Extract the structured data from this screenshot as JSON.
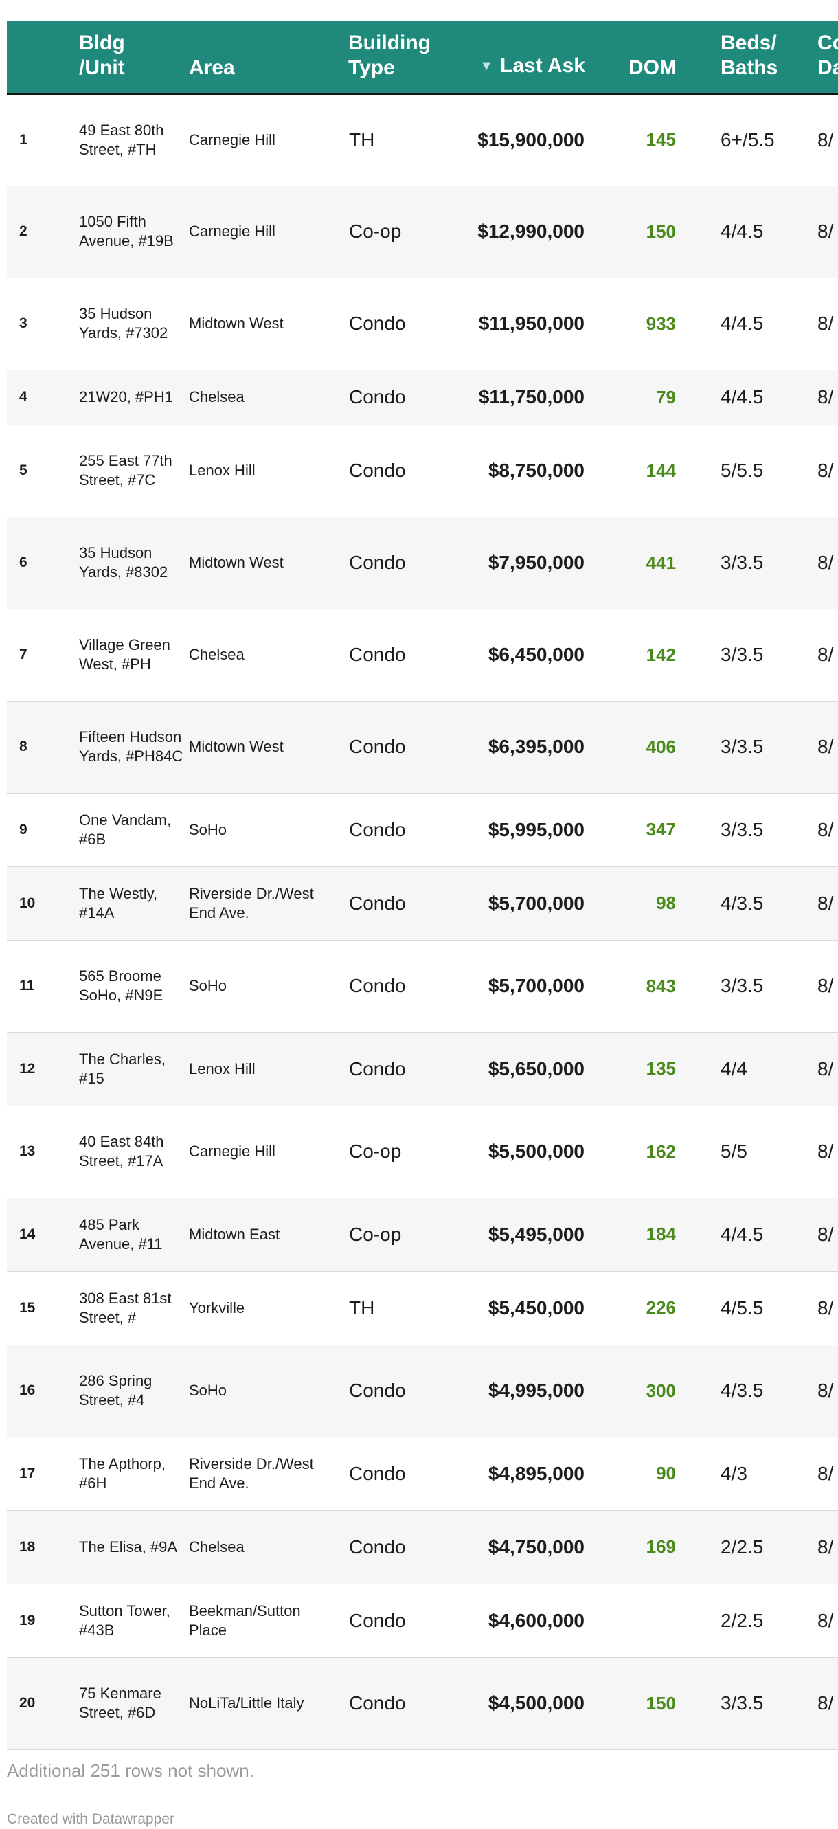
{
  "chart_data": {
    "type": "table",
    "columns": {
      "rank": "",
      "bldg": "Bldg\n/Unit",
      "area": "Area",
      "type": "Building\nType",
      "ask": "Last Ask",
      "dom": "DOM",
      "beds": "Beds/\nBaths",
      "date": "Co\nDa"
    },
    "sort_indicator": "▼",
    "rows": [
      {
        "rank": "1",
        "bldg": "49 East 80th Street, #TH",
        "area": "Carnegie Hill",
        "type": "TH",
        "ask": "$15,900,000",
        "dom": "145",
        "beds": "6+/5.5",
        "date": "8/"
      },
      {
        "rank": "2",
        "bldg": "1050 Fifth Avenue, #19B",
        "area": "Carnegie Hill",
        "type": "Co-op",
        "ask": "$12,990,000",
        "dom": "150",
        "beds": "4/4.5",
        "date": "8/"
      },
      {
        "rank": "3",
        "bldg": "35 Hudson Yards, #7302",
        "area": "Midtown West",
        "type": "Condo",
        "ask": "$11,950,000",
        "dom": "933",
        "beds": "4/4.5",
        "date": "8/"
      },
      {
        "rank": "4",
        "bldg": "21W20, #PH1",
        "area": "Chelsea",
        "type": "Condo",
        "ask": "$11,750,000",
        "dom": "79",
        "beds": "4/4.5",
        "date": "8/"
      },
      {
        "rank": "5",
        "bldg": "255 East 77th Street, #7C",
        "area": "Lenox Hill",
        "type": "Condo",
        "ask": "$8,750,000",
        "dom": "144",
        "beds": "5/5.5",
        "date": "8/"
      },
      {
        "rank": "6",
        "bldg": "35 Hudson Yards, #8302",
        "area": "Midtown West",
        "type": "Condo",
        "ask": "$7,950,000",
        "dom": "441",
        "beds": "3/3.5",
        "date": "8/"
      },
      {
        "rank": "7",
        "bldg": "Village Green West, #PH",
        "area": "Chelsea",
        "type": "Condo",
        "ask": "$6,450,000",
        "dom": "142",
        "beds": "3/3.5",
        "date": "8/"
      },
      {
        "rank": "8",
        "bldg": "Fifteen Hudson Yards, #PH84C",
        "area": "Midtown West",
        "type": "Condo",
        "ask": "$6,395,000",
        "dom": "406",
        "beds": "3/3.5",
        "date": "8/"
      },
      {
        "rank": "9",
        "bldg": "One Vandam, #6B",
        "area": "SoHo",
        "type": "Condo",
        "ask": "$5,995,000",
        "dom": "347",
        "beds": "3/3.5",
        "date": "8/"
      },
      {
        "rank": "10",
        "bldg": "The Westly, #14A",
        "area": "Riverside Dr./West End Ave.",
        "type": "Condo",
        "ask": "$5,700,000",
        "dom": "98",
        "beds": "4/3.5",
        "date": "8/"
      },
      {
        "rank": "11",
        "bldg": "565 Broome SoHo, #N9E",
        "area": "SoHo",
        "type": "Condo",
        "ask": "$5,700,000",
        "dom": "843",
        "beds": "3/3.5",
        "date": "8/"
      },
      {
        "rank": "12",
        "bldg": "The Charles, #15",
        "area": "Lenox Hill",
        "type": "Condo",
        "ask": "$5,650,000",
        "dom": "135",
        "beds": "4/4",
        "date": "8/"
      },
      {
        "rank": "13",
        "bldg": "40 East 84th Street, #17A",
        "area": "Carnegie Hill",
        "type": "Co-op",
        "ask": "$5,500,000",
        "dom": "162",
        "beds": "5/5",
        "date": "8/"
      },
      {
        "rank": "14",
        "bldg": "485 Park Avenue, #11",
        "area": "Midtown East",
        "type": "Co-op",
        "ask": "$5,495,000",
        "dom": "184",
        "beds": "4/4.5",
        "date": "8/"
      },
      {
        "rank": "15",
        "bldg": "308 East 81st Street, #",
        "area": "Yorkville",
        "type": "TH",
        "ask": "$5,450,000",
        "dom": "226",
        "beds": "4/5.5",
        "date": "8/"
      },
      {
        "rank": "16",
        "bldg": "286 Spring Street, #4",
        "area": "SoHo",
        "type": "Condo",
        "ask": "$4,995,000",
        "dom": "300",
        "beds": "4/3.5",
        "date": "8/"
      },
      {
        "rank": "17",
        "bldg": "The Apthorp, #6H",
        "area": "Riverside Dr./West End Ave.",
        "type": "Condo",
        "ask": "$4,895,000",
        "dom": "90",
        "beds": "4/3",
        "date": "8/"
      },
      {
        "rank": "18",
        "bldg": "The Elisa, #9A",
        "area": "Chelsea",
        "type": "Condo",
        "ask": "$4,750,000",
        "dom": "169",
        "beds": "2/2.5",
        "date": "8/"
      },
      {
        "rank": "19",
        "bldg": "Sutton Tower, #43B",
        "area": "Beekman/Sutton Place",
        "type": "Condo",
        "ask": "$4,600,000",
        "dom": "",
        "beds": "2/2.5",
        "date": "8/"
      },
      {
        "rank": "20",
        "bldg": "75 Kenmare Street, #6D",
        "area": "NoLiTa/Little Italy",
        "type": "Condo",
        "ask": "$4,500,000",
        "dom": "150",
        "beds": "3/3.5",
        "date": "8/"
      }
    ],
    "footer_note": "Additional 251 rows not shown.",
    "credit": "Created with Datawrapper"
  },
  "colors": {
    "header_bg": "#1f8a7b",
    "header_text": "#ffffff",
    "dom_text": "#4a8a1c",
    "alt_row_bg": "#f6f6f6",
    "muted_text": "#9a9a9a"
  }
}
